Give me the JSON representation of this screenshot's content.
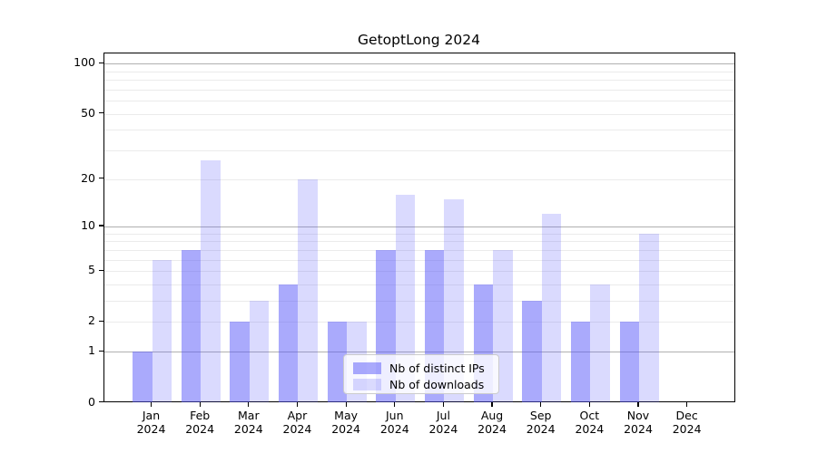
{
  "title": "GetoptLong 2024",
  "chart_data": {
    "type": "bar",
    "title": "GetoptLong 2024",
    "categories": [
      "Jan 2024",
      "Feb 2024",
      "Mar 2024",
      "Apr 2024",
      "May 2024",
      "Jun 2024",
      "Jul 2024",
      "Aug 2024",
      "Sep 2024",
      "Oct 2024",
      "Nov 2024",
      "Dec 2024"
    ],
    "series": [
      {
        "name": "Nb of distinct IPs",
        "color": "rgba(85,85,250,0.5)",
        "values": [
          1,
          7,
          2,
          4,
          2,
          7,
          7,
          4,
          3,
          2,
          2,
          0
        ]
      },
      {
        "name": "Nb of downloads",
        "color": "rgba(85,85,250,0.22)",
        "values": [
          6,
          26,
          3,
          20,
          2,
          16,
          15,
          7,
          12,
          4,
          9,
          0
        ]
      }
    ],
    "xlabel": "",
    "ylabel": "",
    "yscale": "log1p",
    "ylim": [
      0,
      115
    ],
    "yticks": [
      0,
      1,
      2,
      5,
      10,
      20,
      50,
      100
    ],
    "grid": {
      "on": true,
      "major_lines": [
        1,
        10,
        100
      ],
      "minor_lines": [
        2,
        3,
        4,
        5,
        6,
        7,
        8,
        9,
        20,
        30,
        40,
        50,
        60,
        70,
        80,
        90
      ],
      "major_color": "#b0b0b0",
      "minor_color": "#ebebeb"
    },
    "legend_position": "lower center",
    "spine_color": "#000000",
    "background_color": "#ffffff"
  }
}
